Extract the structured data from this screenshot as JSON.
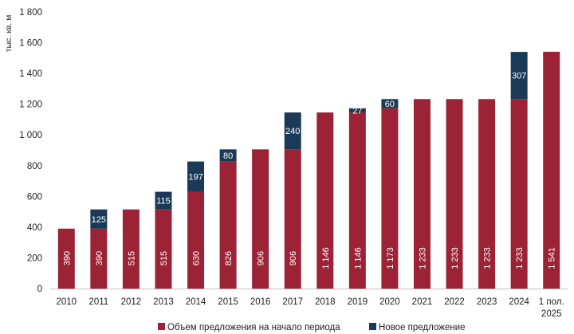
{
  "chart_data": {
    "type": "bar",
    "stacked": true,
    "ylabel": "тыс. кв. м",
    "ylim": [
      0,
      1800
    ],
    "yticks": [
      0,
      200,
      400,
      600,
      800,
      1000,
      1200,
      1400,
      1600,
      1800
    ],
    "ytick_labels": [
      "0",
      "200",
      "400",
      "600",
      "800",
      "1 000",
      "1 200",
      "1 400",
      "1 600",
      "1 800"
    ],
    "categories": [
      "2010",
      "2011",
      "2012",
      "2013",
      "2014",
      "2015",
      "2016",
      "2017",
      "2018",
      "2019",
      "2020",
      "2021",
      "2022",
      "2023",
      "2024",
      "1 пол. 2025"
    ],
    "series": [
      {
        "name": "Объем предложения на начало периода",
        "color": "#9b2335",
        "values": [
          390,
          390,
          515,
          515,
          630,
          826,
          906,
          906,
          1146,
          1146,
          1173,
          1233,
          1233,
          1233,
          1233,
          1541
        ],
        "labels": [
          "390",
          "390",
          "515",
          "515",
          "630",
          "826",
          "906",
          "906",
          "1 146",
          "1 146",
          "1 173",
          "1 233",
          "1 233",
          "1 233",
          "1 233",
          "1 541"
        ]
      },
      {
        "name": "Новое предложение",
        "color": "#1b3a57",
        "values": [
          0,
          125,
          0,
          115,
          197,
          80,
          0,
          240,
          0,
          27,
          60,
          0,
          0,
          0,
          307,
          0
        ],
        "labels": [
          "",
          "125",
          "",
          "115",
          "197",
          "80",
          "",
          "240",
          "",
          "27",
          "60",
          "",
          "",
          "",
          "307",
          ""
        ]
      }
    ],
    "legend_position": "bottom",
    "grid": false
  }
}
